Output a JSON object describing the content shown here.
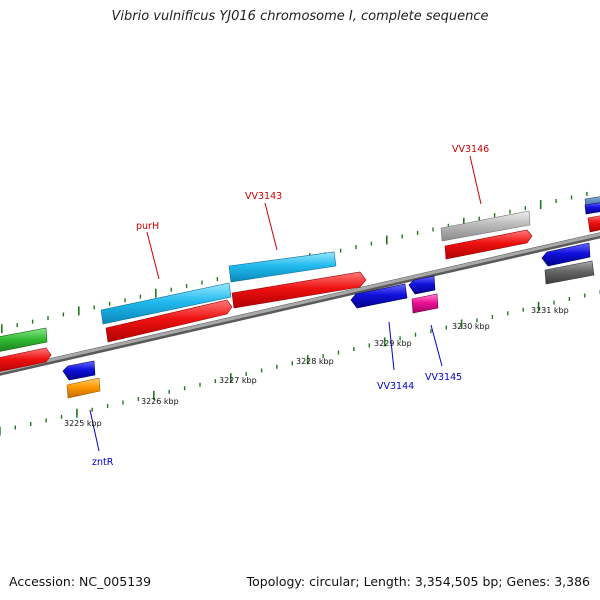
{
  "header": {
    "title": "Vibrio vulnificus YJ016 chromosome I, complete sequence"
  },
  "footer": {
    "accession": "Accession: NC_005139",
    "topology": "Topology: circular; Length: 3,354,505 bp; Genes: 3,386"
  },
  "map": {
    "kbp_labels": [
      "3225 kbp",
      "3226 kbp",
      "3227 kbp",
      "3228 kbp",
      "3229 kbp",
      "3230 kbp",
      "3231 kbp"
    ],
    "forward_gene_labels": [
      "purH",
      "VV3143",
      "VV3146"
    ],
    "reverse_gene_labels": [
      "zntR",
      "VV3144",
      "VV3145"
    ],
    "colors": {
      "backbone": "#8c8c8c",
      "tick": "#1f7a1f",
      "cds": "#ee1111",
      "blast_cyan": "#22bbee",
      "blast_green": "#33bb33",
      "blast_gray": "#bbbbbb",
      "blast_dark_gray": "#666666",
      "blue": "#1111dd",
      "magenta": "#ee1199",
      "orange": "#ff9900",
      "forward_label": "#cc0000",
      "reverse_label": "#0000cc"
    }
  }
}
